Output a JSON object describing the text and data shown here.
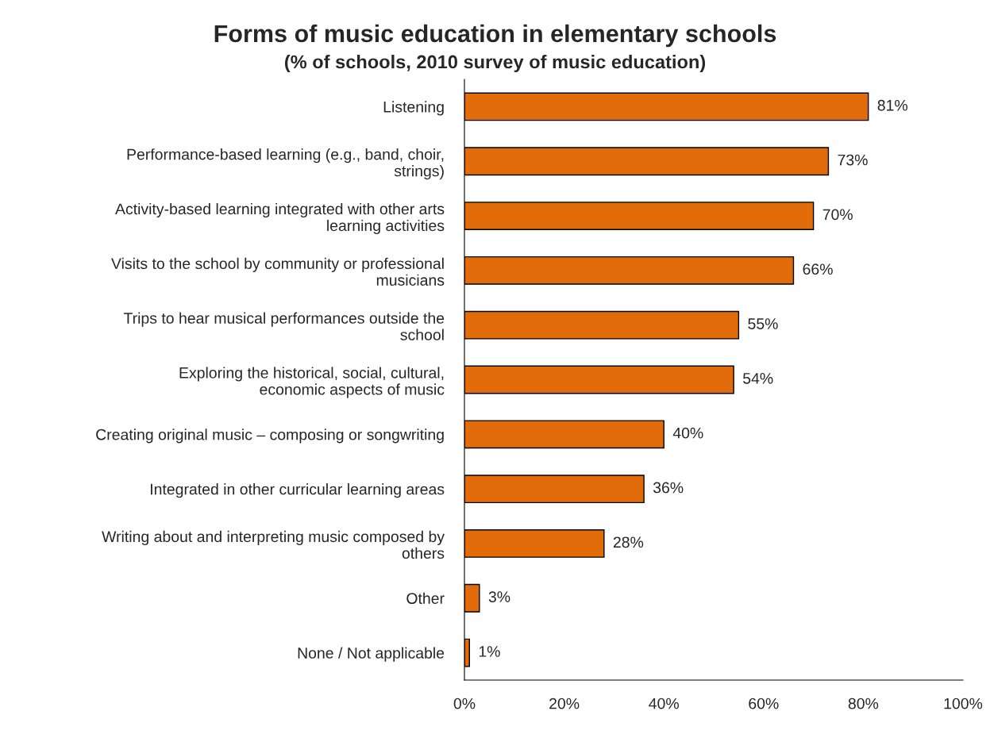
{
  "chart_data": {
    "type": "bar",
    "orientation": "horizontal",
    "title": "Forms of music education in elementary schools",
    "subtitle": "(% of schools, 2010 survey of music education)",
    "categories": [
      "Listening",
      "Performance-based learning (e.g., band, choir, strings)",
      "Activity-based learning integrated with other arts learning activities",
      "Visits to the school by community or professional musicians",
      "Trips to hear musical performances outside the school",
      "Exploring the historical, social, cultural, economic aspects of music",
      "Creating original music – composing or songwriting",
      "Integrated in other curricular learning areas",
      "Writing about and interpreting music composed by others",
      "Other",
      "None / Not applicable"
    ],
    "values": [
      81,
      73,
      70,
      66,
      55,
      54,
      40,
      36,
      28,
      3,
      1
    ],
    "value_labels": [
      "81%",
      "73%",
      "70%",
      "66%",
      "55%",
      "54%",
      "40%",
      "36%",
      "28%",
      "3%",
      "1%"
    ],
    "color": "#e36c0a",
    "xlim": [
      0,
      100
    ],
    "xticks": [
      {
        "value": 0,
        "label": "0%"
      },
      {
        "value": 20,
        "label": "20%"
      },
      {
        "value": 40,
        "label": "40%"
      },
      {
        "value": 60,
        "label": "60%"
      },
      {
        "value": 80,
        "label": "80%"
      },
      {
        "value": 100,
        "label": "100%"
      }
    ],
    "grid": false,
    "legend": false
  }
}
